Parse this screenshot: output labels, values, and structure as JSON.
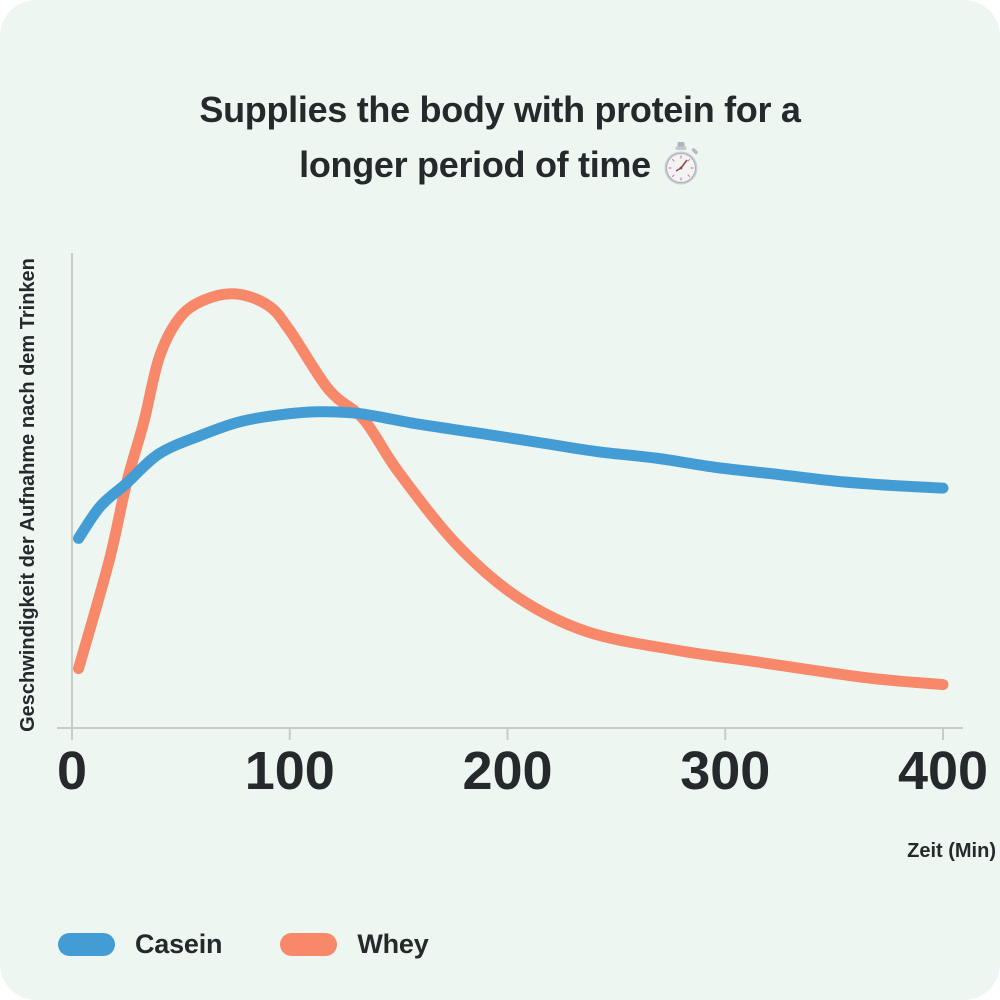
{
  "header": {
    "title_line1": "Supplies the body with protein for a",
    "title_line2": "longer period of time",
    "title_icon": "stopwatch"
  },
  "colors": {
    "background": "#EEF6F1",
    "page_behind_card": "#FFFFFF",
    "axis": "#C7CCC8",
    "text": "#26292B",
    "casein": "#449CD5",
    "whey": "#F7886A"
  },
  "chart_data": {
    "type": "line",
    "title": "Supplies the body with protein for a longer period of time",
    "xlabel": "Zeit (Min)",
    "ylabel": "Geschwindigkeit der Aufnahme nach dem Trinken",
    "xlim": [
      0,
      400
    ],
    "ylim": [
      0,
      100
    ],
    "x_ticks": [
      0,
      100,
      200,
      300,
      400
    ],
    "grid": false,
    "legend_position": "bottom-left",
    "series": [
      {
        "name": "Casein",
        "color": "#449CD5",
        "points": [
          [
            3,
            41.5
          ],
          [
            13,
            48.5
          ],
          [
            25,
            53.5
          ],
          [
            40,
            60
          ],
          [
            59,
            64
          ],
          [
            77,
            67
          ],
          [
            95,
            68.5
          ],
          [
            113,
            69.2
          ],
          [
            132,
            68.8
          ],
          [
            159,
            66.5
          ],
          [
            187,
            64.5
          ],
          [
            214,
            62.5
          ],
          [
            241,
            60.5
          ],
          [
            269,
            59
          ],
          [
            296,
            57
          ],
          [
            324,
            55.5
          ],
          [
            351,
            54
          ],
          [
            379,
            53
          ],
          [
            400,
            52.5
          ]
        ]
      },
      {
        "name": "Whey",
        "color": "#F7886A",
        "points": [
          [
            3,
            13
          ],
          [
            17,
            36.5
          ],
          [
            25,
            53.5
          ],
          [
            33,
            67
          ],
          [
            40,
            81
          ],
          [
            49,
            89.5
          ],
          [
            60,
            93.5
          ],
          [
            75,
            95
          ],
          [
            90,
            92.5
          ],
          [
            100,
            87
          ],
          [
            118,
            74
          ],
          [
            134,
            67.5
          ],
          [
            150,
            56
          ],
          [
            177,
            40
          ],
          [
            205,
            28.5
          ],
          [
            237,
            21
          ],
          [
            278,
            17
          ],
          [
            314,
            14.5
          ],
          [
            365,
            11
          ],
          [
            400,
            9.5
          ]
        ]
      }
    ]
  }
}
